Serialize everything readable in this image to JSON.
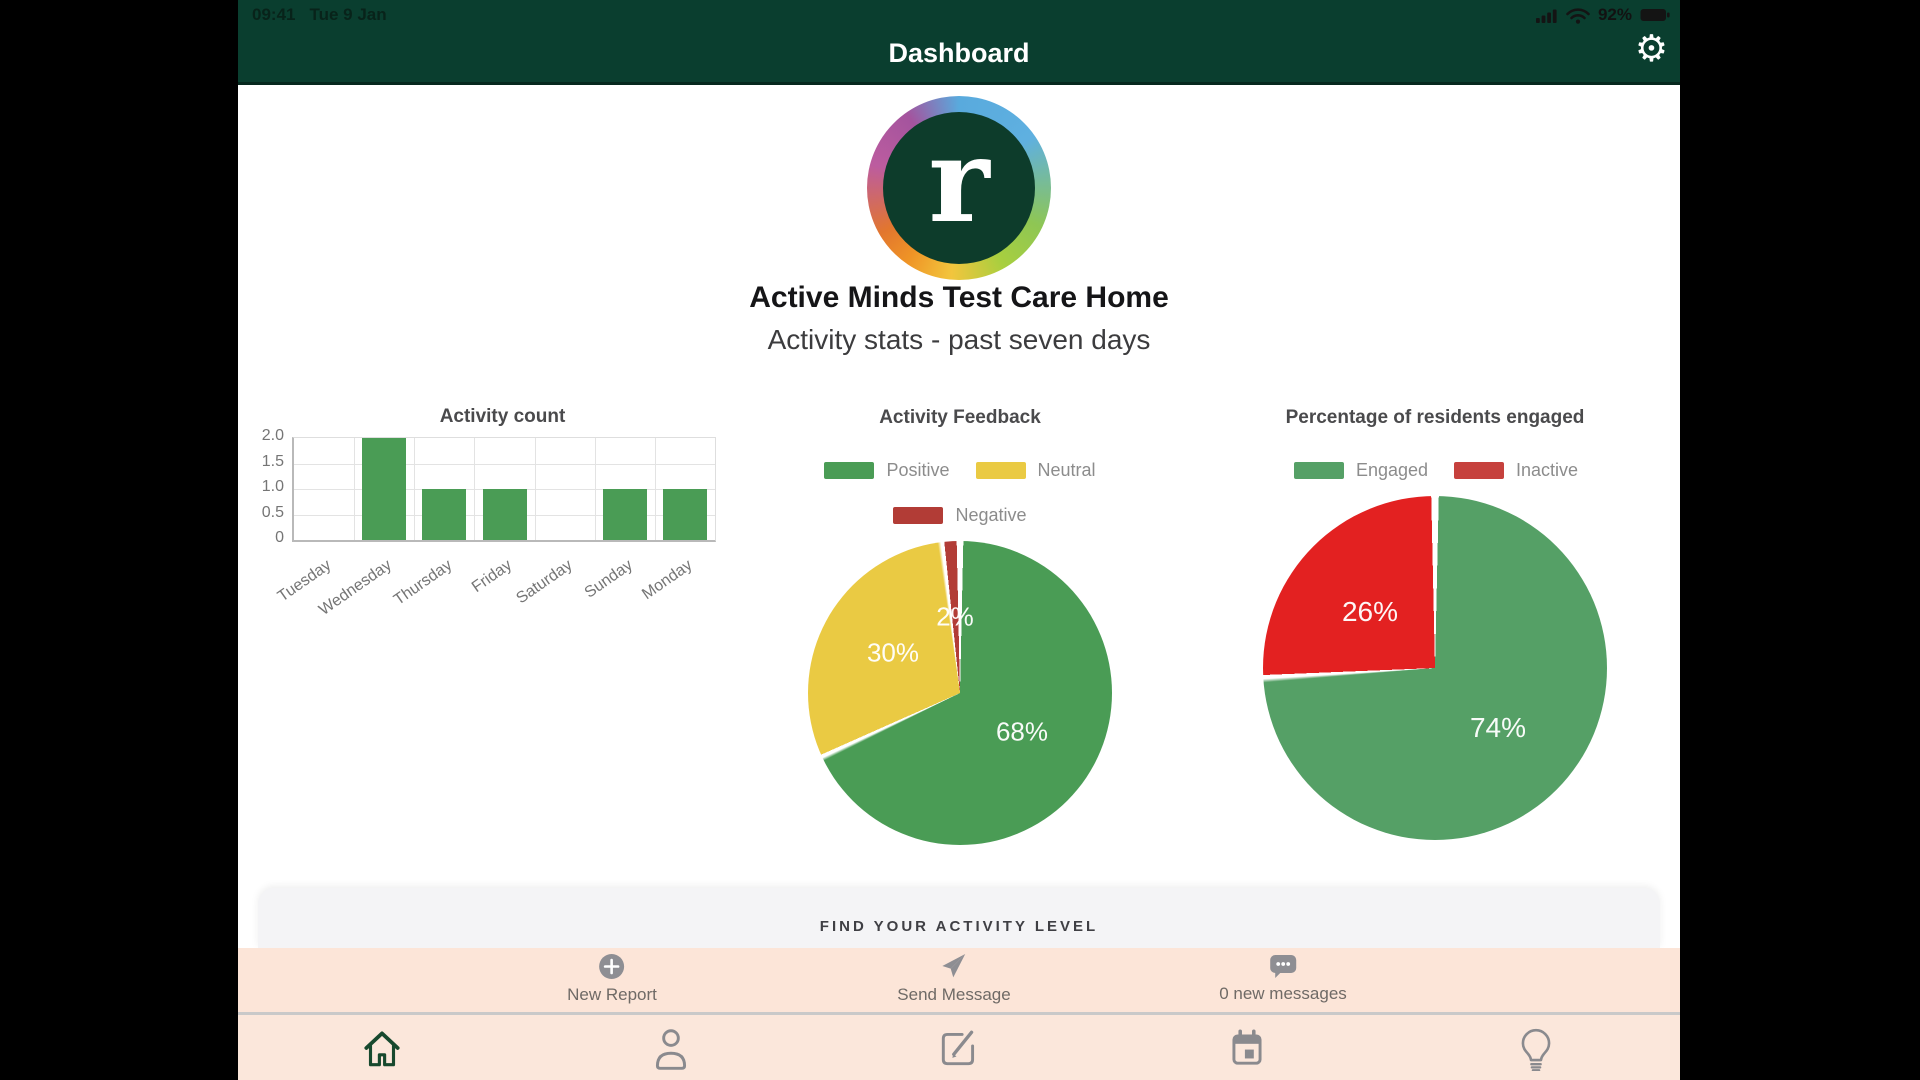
{
  "status_bar": {
    "time": "09:41",
    "date": "Tue 9 Jan",
    "battery_percent": "92%",
    "icons": [
      "cellular-signal-icon",
      "wifi-icon",
      "battery-icon"
    ]
  },
  "header": {
    "title": "Dashboard",
    "settings_icon": "gear-icon"
  },
  "brand": {
    "logo_letter": "r",
    "care_home_name": "Active Minds Test Care Home",
    "subtitle": "Activity stats - past seven days"
  },
  "chart_data": [
    {
      "type": "bar",
      "title": "Activity count",
      "categories": [
        "Tuesday",
        "Wednesday",
        "Thursday",
        "Friday",
        "Saturday",
        "Sunday",
        "Monday"
      ],
      "values": [
        0,
        2,
        1,
        1,
        0,
        1,
        1
      ],
      "ytick_labels": [
        "2.0",
        "1.5",
        "1.0",
        "0.5",
        "0"
      ],
      "ylim": [
        0,
        2
      ],
      "grid": true,
      "bar_color": "#4a9c55",
      "x_label_rotation_deg": 35
    },
    {
      "type": "pie",
      "title": "Activity Feedback",
      "legend_position": "top",
      "slices": [
        {
          "label": "Positive",
          "value": 68,
          "pct_label": "68%",
          "color": "#4a9c55"
        },
        {
          "label": "Neutral",
          "value": 30,
          "pct_label": "30%",
          "color": "#eaca43"
        },
        {
          "label": "Negative",
          "value": 2,
          "pct_label": "2%",
          "color": "#b23c36"
        }
      ]
    },
    {
      "type": "pie",
      "title": "Percentage of residents engaged",
      "legend_position": "top",
      "slices": [
        {
          "label": "Engaged",
          "value": 74,
          "pct_label": "74%",
          "color": "#55a066"
        },
        {
          "label": "Inactive",
          "value": 26,
          "pct_label": "26%",
          "color": "#e32121",
          "legend_color": "#c6413d"
        }
      ]
    }
  ],
  "activity_card": {
    "heading": "FIND YOUR ACTIVITY LEVEL"
  },
  "toolbar": {
    "items": [
      {
        "label": "New Report",
        "icon": "plus-circle-icon"
      },
      {
        "label": "Send Message",
        "icon": "send-icon"
      },
      {
        "label": "0 new messages",
        "icon": "messages-icon"
      }
    ]
  },
  "tab_bar": {
    "active_index": 0,
    "items": [
      {
        "icon": "home-icon"
      },
      {
        "icon": "person-icon"
      },
      {
        "icon": "compose-icon"
      },
      {
        "icon": "calendar-icon"
      },
      {
        "icon": "lightbulb-icon"
      }
    ]
  },
  "colors": {
    "header_green": "#0a3e2f",
    "toolbar_peach": "#fce5d8",
    "tabbar_peach": "#fbe7db",
    "card_gray": "#f4f4f6",
    "active_tab_green": "#17492e",
    "icon_gray": "#8e8e93"
  }
}
